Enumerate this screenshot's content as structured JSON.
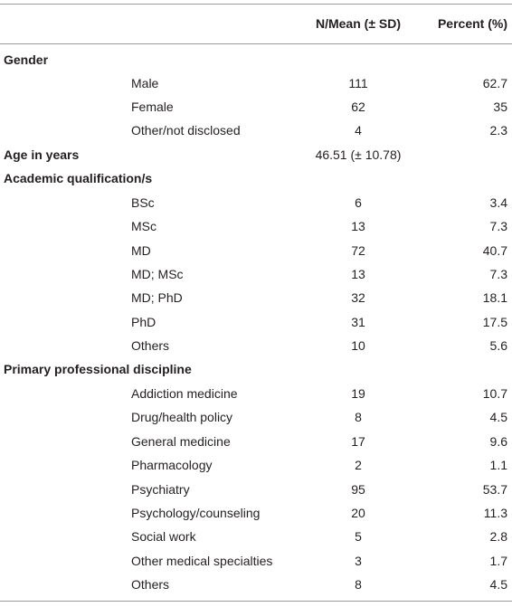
{
  "header": {
    "col_value": "N/Mean (± SD)",
    "col_percent": "Percent (%)"
  },
  "gender": {
    "title": "Gender",
    "rows": [
      {
        "label": "Male",
        "n": "111",
        "pct": "62.7"
      },
      {
        "label": "Female",
        "n": "62",
        "pct": "35"
      },
      {
        "label": "Other/not disclosed",
        "n": "4",
        "pct": "2.3"
      }
    ]
  },
  "age": {
    "title": "Age in years",
    "value": "46.51 (± 10.78)"
  },
  "academic": {
    "title": "Academic qualification/s",
    "rows": [
      {
        "label": "BSc",
        "n": "6",
        "pct": "3.4"
      },
      {
        "label": "MSc",
        "n": "13",
        "pct": "7.3"
      },
      {
        "label": "MD",
        "n": "72",
        "pct": "40.7"
      },
      {
        "label": "MD; MSc",
        "n": "13",
        "pct": "7.3"
      },
      {
        "label": "MD; PhD",
        "n": "32",
        "pct": "18.1"
      },
      {
        "label": "PhD",
        "n": "31",
        "pct": "17.5"
      },
      {
        "label": "Others",
        "n": "10",
        "pct": "5.6"
      }
    ]
  },
  "discipline": {
    "title": "Primary professional discipline",
    "rows": [
      {
        "label": "Addiction medicine",
        "n": "19",
        "pct": "10.7"
      },
      {
        "label": "Drug/health policy",
        "n": "8",
        "pct": "4.5"
      },
      {
        "label": "General medicine",
        "n": "17",
        "pct": "9.6"
      },
      {
        "label": "Pharmacology",
        "n": "2",
        "pct": "1.1"
      },
      {
        "label": "Psychiatry",
        "n": "95",
        "pct": "53.7"
      },
      {
        "label": "Psychology/counseling",
        "n": "20",
        "pct": "11.3"
      },
      {
        "label": "Social work",
        "n": "5",
        "pct": "2.8"
      },
      {
        "label": "Other medical specialties",
        "n": "3",
        "pct": "1.7"
      },
      {
        "label": "Others",
        "n": "8",
        "pct": "4.5"
      }
    ]
  }
}
